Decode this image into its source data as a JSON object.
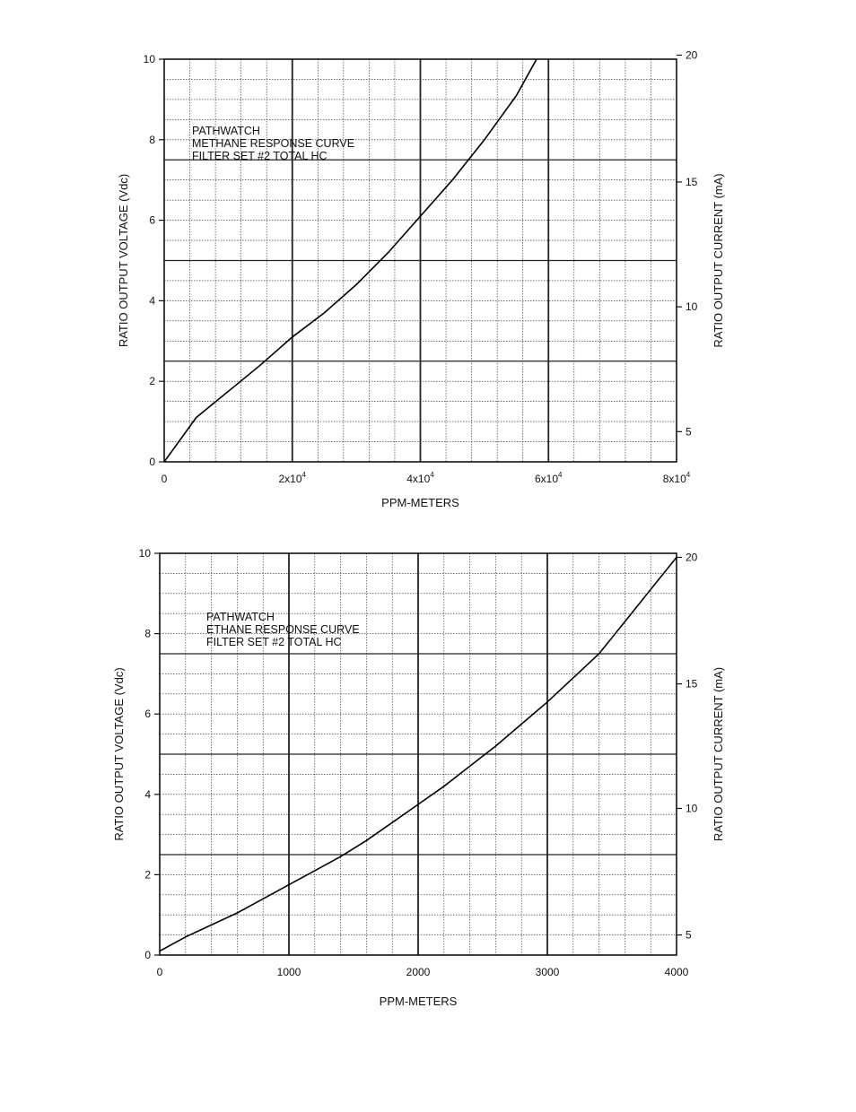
{
  "chart_data": [
    {
      "type": "line",
      "annotation_lines": [
        "PATHWATCH",
        "METHANE RESPONSE CURVE",
        "FILTER SET #2 TOTAL HC"
      ],
      "xlabel": "PPM-METERS",
      "ylabel": "RATIO OUTPUT VOLTAGE (Vdc)",
      "ylabel_right": "RATIO OUTPUT CURRENT (mA)",
      "xlim": [
        0,
        80000
      ],
      "ylim": [
        0,
        10
      ],
      "x_ticks": [
        {
          "value": 0,
          "base": "0",
          "exp": ""
        },
        {
          "value": 20000,
          "base": "2x10",
          "exp": "4"
        },
        {
          "value": 40000,
          "base": "4x10",
          "exp": "4"
        },
        {
          "value": 60000,
          "base": "6x10",
          "exp": "4"
        },
        {
          "value": 80000,
          "base": "8x10",
          "exp": "4"
        }
      ],
      "y_ticks": [
        0,
        2,
        4,
        6,
        8,
        10
      ],
      "y_right_ticks": [
        {
          "label": "5",
          "volts": 0.75
        },
        {
          "label": "10",
          "volts": 3.85
        },
        {
          "label": "15",
          "volts": 6.95
        },
        {
          "label": "20",
          "volts": 10.1
        }
      ],
      "grid": true,
      "series": [
        {
          "values": [
            [
              0,
              0
            ],
            [
              5000,
              1.1
            ],
            [
              10000,
              1.75
            ],
            [
              15000,
              2.4
            ],
            [
              20000,
              3.1
            ],
            [
              25000,
              3.7
            ],
            [
              30000,
              4.4
            ],
            [
              35000,
              5.2
            ],
            [
              40000,
              6.1
            ],
            [
              45000,
              7.0
            ],
            [
              50000,
              8.0
            ],
            [
              55000,
              9.1
            ],
            [
              58500,
              10.1
            ]
          ]
        }
      ]
    },
    {
      "type": "line",
      "annotation_lines": [
        "PATHWATCH",
        "ETHANE RESPONSE CURVE",
        "FILTER SET #2 TOTAL HC"
      ],
      "xlabel": "PPM-METERS",
      "ylabel": "RATIO OUTPUT VOLTAGE (Vdc)",
      "ylabel_right": "RATIO OUTPUT CURRENT (mA)",
      "xlim": [
        0,
        4000
      ],
      "ylim": [
        0,
        10
      ],
      "x_ticks": [
        {
          "value": 0,
          "base": "0",
          "exp": ""
        },
        {
          "value": 1000,
          "base": "1000",
          "exp": ""
        },
        {
          "value": 2000,
          "base": "2000",
          "exp": ""
        },
        {
          "value": 3000,
          "base": "3000",
          "exp": ""
        },
        {
          "value": 4000,
          "base": "4000",
          "exp": ""
        }
      ],
      "y_ticks": [
        0,
        2,
        4,
        6,
        8,
        10
      ],
      "y_right_ticks": [
        {
          "label": "5",
          "volts": 0.5
        },
        {
          "label": "10",
          "volts": 3.65
        },
        {
          "label": "15",
          "volts": 6.75
        },
        {
          "label": "20",
          "volts": 9.9
        }
      ],
      "grid": true,
      "series": [
        {
          "values": [
            [
              0,
              0.1
            ],
            [
              200,
              0.45
            ],
            [
              400,
              0.75
            ],
            [
              600,
              1.05
            ],
            [
              800,
              1.4
            ],
            [
              1000,
              1.75
            ],
            [
              1200,
              2.1
            ],
            [
              1400,
              2.45
            ],
            [
              1600,
              2.85
            ],
            [
              1800,
              3.3
            ],
            [
              2000,
              3.75
            ],
            [
              2200,
              4.2
            ],
            [
              2400,
              4.7
            ],
            [
              2600,
              5.2
            ],
            [
              2800,
              5.75
            ],
            [
              3000,
              6.3
            ],
            [
              3200,
              6.9
            ],
            [
              3400,
              7.5
            ],
            [
              3600,
              8.3
            ],
            [
              3800,
              9.1
            ],
            [
              4000,
              9.9
            ]
          ]
        }
      ]
    }
  ]
}
